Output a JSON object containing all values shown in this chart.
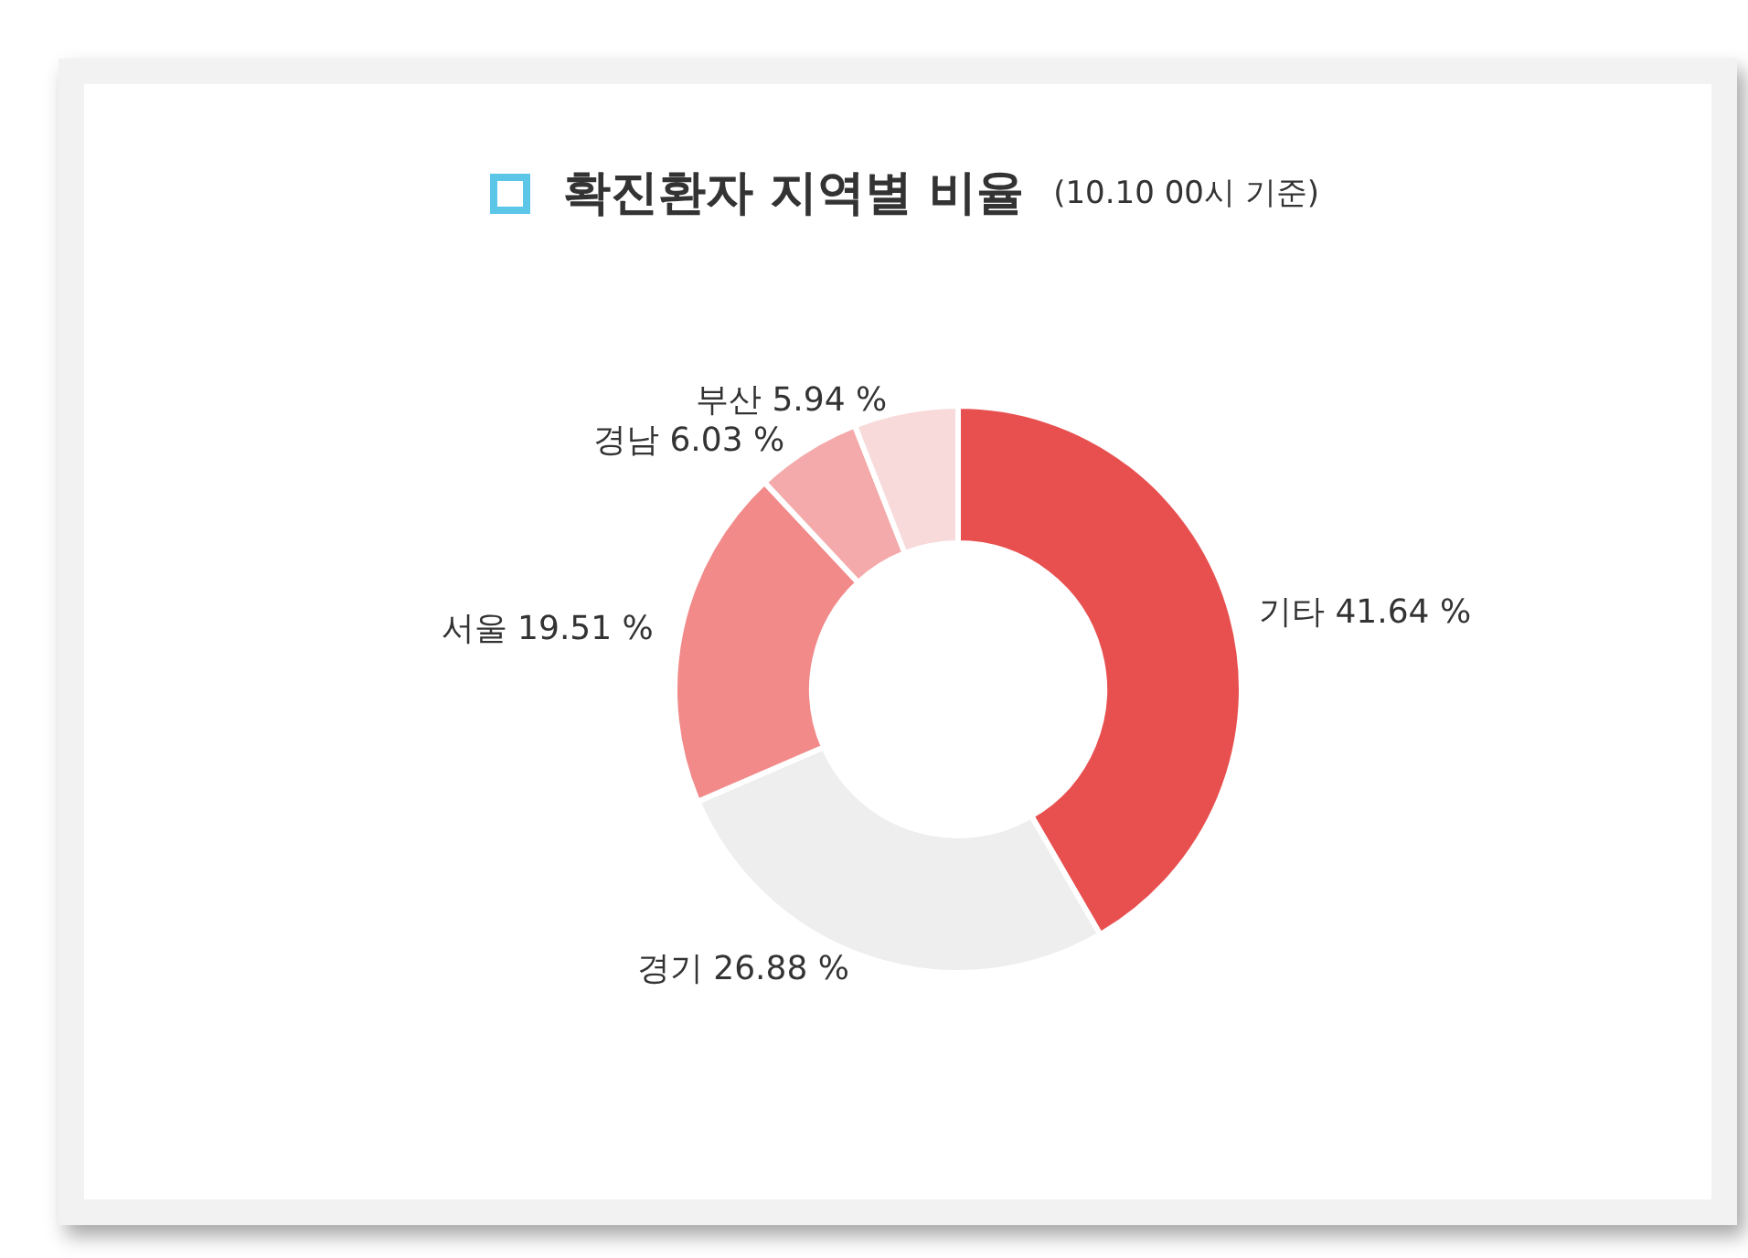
{
  "chart_data": {
    "type": "donut",
    "title": "확진환자 지역별 비율",
    "subtitle": "(10.10 00시 기준)",
    "categories": [
      "기타",
      "경기",
      "서울",
      "경남",
      "부산"
    ],
    "values": [
      41.64,
      26.88,
      19.51,
      6.03,
      5.94
    ],
    "colors": [
      "#e85050",
      "#eeeeee",
      "#f28a8a",
      "#f4aaaa",
      "#f8dada"
    ],
    "value_labels": [
      "41.64 %",
      "26.88 %",
      "19.51 %",
      "6.03 %",
      "5.94 %"
    ],
    "legend": false
  }
}
